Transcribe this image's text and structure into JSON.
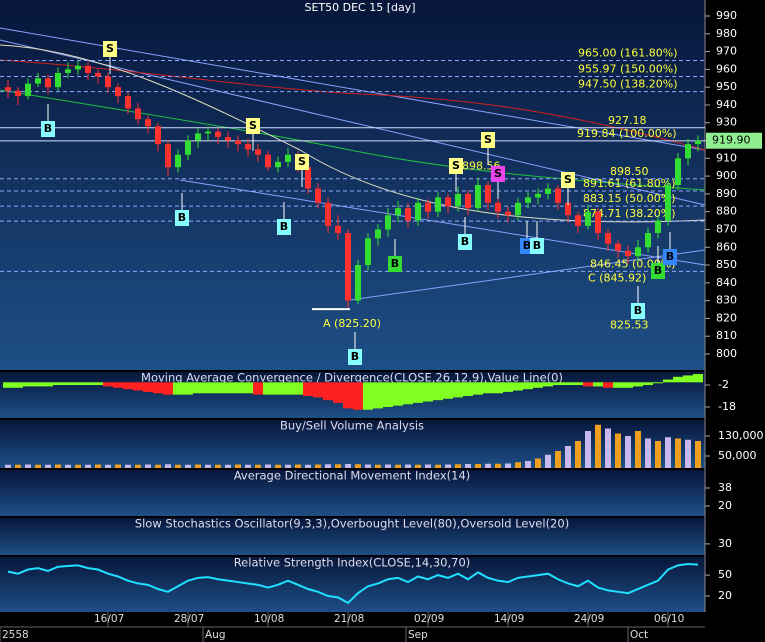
{
  "chart_data": {
    "type": "candlestick",
    "title": "SET50 DEC 15   [day]",
    "ylim": [
      791,
      999
    ],
    "yticks": [
      990,
      980,
      970,
      960,
      950,
      940,
      930,
      920,
      910,
      900,
      890,
      880,
      870,
      860,
      850,
      840,
      830,
      820,
      810,
      800
    ],
    "up_color": "#33dd33",
    "down_color": "#ff3030",
    "last_label": "919.90",
    "categories": [
      null,
      null,
      null,
      null,
      null,
      null,
      null,
      null,
      null,
      null,
      "16/07",
      null,
      null,
      null,
      null,
      null,
      null,
      null,
      "28/07",
      null,
      null,
      null,
      null,
      null,
      null,
      null,
      "10/08",
      null,
      null,
      null,
      null,
      null,
      null,
      null,
      "21/08",
      null,
      null,
      null,
      null,
      null,
      null,
      null,
      "02/09",
      null,
      null,
      null,
      null,
      null,
      null,
      null,
      "14/09",
      null,
      null,
      null,
      null,
      null,
      null,
      null,
      "24/09",
      null,
      null,
      null,
      null,
      null,
      null,
      null,
      "06/10",
      null,
      null,
      null
    ],
    "x_groups": [
      "2558",
      "Aug",
      "Sep",
      "Oct"
    ],
    "candles": [
      [
        950,
        954,
        944,
        948
      ],
      [
        948,
        950,
        940,
        945
      ],
      [
        945,
        955,
        943,
        952
      ],
      [
        952,
        958,
        950,
        955
      ],
      [
        955,
        957,
        946,
        950
      ],
      [
        950,
        961,
        948,
        958
      ],
      [
        958,
        964,
        955,
        960
      ],
      [
        960,
        965,
        957,
        962
      ],
      [
        962,
        964,
        954,
        958
      ],
      [
        958,
        960,
        952,
        956
      ],
      [
        956,
        958,
        947,
        950
      ],
      [
        950,
        952,
        941,
        945
      ],
      [
        945,
        947,
        935,
        938
      ],
      [
        938,
        941,
        929,
        932
      ],
      [
        932,
        934,
        924,
        928
      ],
      [
        928,
        930,
        914,
        918
      ],
      [
        918,
        920,
        900,
        905
      ],
      [
        905,
        915,
        902,
        912
      ],
      [
        912,
        923,
        909,
        920
      ],
      [
        920,
        927,
        916,
        924
      ],
      [
        924,
        928,
        920,
        925
      ],
      [
        925,
        927,
        918,
        922
      ],
      [
        922,
        925,
        916,
        920
      ],
      [
        920,
        923,
        914,
        918
      ],
      [
        918,
        921,
        911,
        915
      ],
      [
        915,
        918,
        908,
        912
      ],
      [
        912,
        914,
        903,
        905
      ],
      [
        905,
        911,
        902,
        908
      ],
      [
        908,
        916,
        905,
        912
      ],
      [
        912,
        914,
        902,
        905
      ],
      [
        905,
        907,
        890,
        893
      ],
      [
        893,
        896,
        882,
        885
      ],
      [
        885,
        888,
        868,
        872
      ],
      [
        872,
        878,
        864,
        868
      ],
      [
        868,
        870,
        826,
        830
      ],
      [
        830,
        853,
        828,
        850
      ],
      [
        850,
        868,
        847,
        865
      ],
      [
        865,
        873,
        861,
        870
      ],
      [
        870,
        882,
        866,
        878
      ],
      [
        878,
        886,
        874,
        882
      ],
      [
        882,
        885,
        871,
        875
      ],
      [
        875,
        888,
        872,
        885
      ],
      [
        885,
        887,
        876,
        880
      ],
      [
        880,
        891,
        877,
        888
      ],
      [
        888,
        890,
        879,
        883
      ],
      [
        883,
        894,
        880,
        890
      ],
      [
        890,
        892,
        878,
        882
      ],
      [
        882,
        899,
        880,
        895
      ],
      [
        895,
        897,
        881,
        885
      ],
      [
        885,
        888,
        876,
        880
      ],
      [
        880,
        883,
        874,
        878
      ],
      [
        878,
        888,
        875,
        885
      ],
      [
        885,
        891,
        882,
        888
      ],
      [
        888,
        893,
        884,
        890
      ],
      [
        890,
        896,
        887,
        893
      ],
      [
        893,
        895,
        881,
        885
      ],
      [
        885,
        887,
        874,
        878
      ],
      [
        878,
        880,
        868,
        872
      ],
      [
        872,
        884,
        870,
        880
      ],
      [
        880,
        882,
        864,
        868
      ],
      [
        868,
        870,
        858,
        862
      ],
      [
        862,
        864,
        854,
        858
      ],
      [
        858,
        861,
        851,
        855
      ],
      [
        855,
        864,
        852,
        860
      ],
      [
        860,
        871,
        857,
        868
      ],
      [
        868,
        878,
        865,
        875
      ],
      [
        875,
        898,
        872,
        895
      ],
      [
        895,
        913,
        892,
        910
      ],
      [
        910,
        921,
        906,
        918
      ],
      [
        918,
        923,
        914,
        919.9
      ]
    ],
    "levels": [
      {
        "value": 965,
        "label": "965.00 (161.80%)"
      },
      {
        "value": 955.97,
        "label": "955.97 (150.00%)"
      },
      {
        "value": 947.5,
        "label": "947.50 (138.20%)"
      },
      {
        "value": 927.18,
        "label": "927.18"
      },
      {
        "value": 919.84,
        "label": "919.84 (100.00%)"
      },
      {
        "value": 898.5,
        "label": "898.50"
      },
      {
        "value": 891.61,
        "label": "891.61 (61.80%)"
      },
      {
        "value": 883.15,
        "label": "883.15 (50.00%)"
      },
      {
        "value": 874.71,
        "label": "874.71 (38.20%)"
      },
      {
        "value": 846.45,
        "label": "846.45 (0.00%)"
      }
    ],
    "annotations": [
      {
        "value": 898.56,
        "label": "898.56"
      },
      {
        "value": 845.92,
        "label": "C (845.92)"
      },
      {
        "value": 825.53,
        "label": "825.53"
      },
      {
        "value": 825.2,
        "label": "A (825.20)"
      }
    ],
    "signals": [
      "B",
      "S",
      "S",
      "S",
      "B",
      "B",
      "B",
      "B",
      "S",
      "S",
      "S",
      "B",
      "B",
      "B",
      "S",
      "B",
      "B",
      "B"
    ],
    "indicators": [
      {
        "type": "macd",
        "title": "Moving Average Convergence / Divergence(CLOSE,26,12,9),Value Line(0)",
        "ylim": [
          -26,
          7.5
        ],
        "yticks": [
          -2,
          -18
        ],
        "values": [
          -4,
          -4,
          -3,
          -3,
          -3,
          -2,
          -2,
          -2,
          -2,
          -2,
          -3,
          -4,
          -5,
          -6,
          -7,
          -8,
          -9,
          -9,
          -9,
          -8,
          -8,
          -8,
          -8,
          -8,
          -8,
          -9,
          -9,
          -9,
          -9,
          -9,
          -10,
          -11,
          -13,
          -15,
          -19,
          -20,
          -20,
          -19,
          -18,
          -17,
          -16,
          -15,
          -14,
          -13,
          -12,
          -11,
          -10,
          -9,
          -8,
          -8,
          -7,
          -6,
          -5,
          -4,
          -3,
          -2,
          -2,
          -2,
          -3,
          -3,
          -4,
          -4,
          -4,
          -3,
          -2,
          0,
          2,
          4,
          5,
          6
        ]
      },
      {
        "type": "volume",
        "title": "Buy/Sell Volume Analysis",
        "ylim": [
          2000,
          194000
        ],
        "yticks": [
          {
            "value": 130000,
            "label": "130,000"
          },
          {
            "value": 50000,
            "label": "50,000"
          }
        ],
        "values": [
          15000,
          15000,
          16000,
          15000,
          15000,
          16000,
          15000,
          15000,
          15000,
          16000,
          15000,
          16000,
          15000,
          15000,
          16000,
          15000,
          17000,
          15000,
          15000,
          16000,
          15000,
          15000,
          15000,
          16000,
          15000,
          15000,
          16000,
          15000,
          15000,
          16000,
          15000,
          16000,
          17000,
          17000,
          18000,
          17000,
          16000,
          15000,
          16000,
          15000,
          16000,
          15000,
          16000,
          15000,
          16000,
          17000,
          18000,
          18000,
          19000,
          19000,
          20000,
          25000,
          30000,
          40000,
          55000,
          70000,
          90000,
          110000,
          150000,
          175000,
          160000,
          140000,
          130000,
          150000,
          120000,
          110000,
          125000,
          120000,
          115000,
          110000
        ]
      },
      {
        "type": "adx",
        "title": "Average Directional Movement Index(14)",
        "ylim": [
          10,
          56
        ],
        "yticks": [
          38,
          20
        ]
      },
      {
        "type": "stochastic",
        "title": "Slow Stochastics Oscillator(9,3,3),Overbought Level(80),Oversold Level(20)",
        "ylim": [
          0,
          100
        ],
        "yticks": [
          30
        ]
      },
      {
        "type": "rsi",
        "title": "Relative Strength Index(CLOSE,14,30,70)",
        "ylim": [
          -3,
          76
        ],
        "yticks": [
          50,
          20
        ],
        "values": [
          55,
          52,
          58,
          60,
          56,
          62,
          63,
          64,
          60,
          58,
          52,
          48,
          42,
          38,
          36,
          30,
          26,
          34,
          42,
          46,
          47,
          44,
          42,
          40,
          38,
          36,
          32,
          36,
          42,
          36,
          30,
          26,
          20,
          18,
          10,
          24,
          34,
          38,
          44,
          46,
          40,
          48,
          44,
          50,
          46,
          52,
          44,
          54,
          46,
          42,
          40,
          46,
          48,
          50,
          52,
          44,
          38,
          34,
          42,
          32,
          28,
          26,
          24,
          30,
          36,
          42,
          58,
          64,
          66,
          65
        ]
      }
    ]
  }
}
